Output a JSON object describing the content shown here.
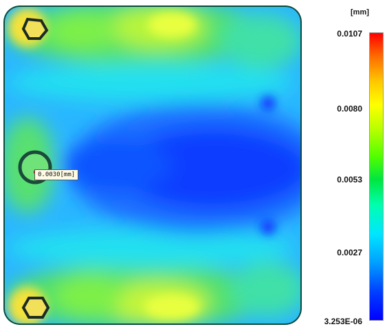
{
  "legend": {
    "unit": "[mm]",
    "max_label": "0.0107",
    "tick_2": "0.0080",
    "tick_3": "0.0053",
    "tick_4": "0.0027",
    "min_label": "3.253E-06",
    "gradient_colors": [
      "#ff0000",
      "#ffff00",
      "#00ff00",
      "#00ffff",
      "#0000ff"
    ]
  },
  "probe": {
    "label": "0.0030[mm]"
  },
  "plot": {
    "background_color": "#0a4a3a",
    "holes": [
      "hexagon-hole-top-left",
      "circle-hole-mid-left",
      "hexagon-hole-bottom-left"
    ]
  }
}
